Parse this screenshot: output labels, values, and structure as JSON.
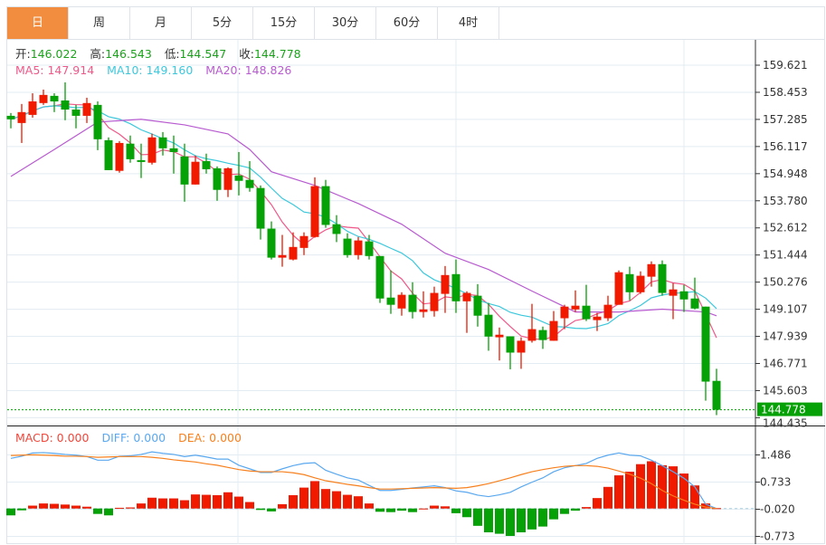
{
  "tabs": [
    {
      "label": "日",
      "active": true
    },
    {
      "label": "周",
      "active": false
    },
    {
      "label": "月",
      "active": false
    },
    {
      "label": "5分",
      "active": false
    },
    {
      "label": "15分",
      "active": false
    },
    {
      "label": "30分",
      "active": false
    },
    {
      "label": "60分",
      "active": false
    },
    {
      "label": "4时",
      "active": false
    }
  ],
  "ohlc_legend": {
    "open_label": "开:",
    "open": "146.022",
    "high_label": "高:",
    "high": "146.543",
    "low_label": "低:",
    "low": "144.547",
    "close_label": "收:",
    "close": "144.778"
  },
  "ma_legend": {
    "ma5": "MA5: 147.914",
    "ma10": "MA10: 149.160",
    "ma20": "MA20: 148.826"
  },
  "macd_legend": {
    "macd": "MACD: 0.000",
    "diff": "DIFF: 0.000",
    "dea": "DEA: 0.000"
  },
  "colors": {
    "up": "#ef1a00",
    "down": "#06a106",
    "ma5": "#f0588a",
    "ma10": "#3cc8dc",
    "ma20": "#b85bd0",
    "diff": "#5aa8ef",
    "dea": "#f7801e",
    "accent": "#f28c3f"
  },
  "chart_data": [
    {
      "type": "candlestick",
      "price_axis_ticks": [
        "159.621",
        "158.453",
        "157.285",
        "156.117",
        "154.948",
        "153.780",
        "152.612",
        "151.444",
        "150.276",
        "149.107",
        "147.939",
        "146.771",
        "145.603",
        "144.435"
      ],
      "current_price": "144.778",
      "candles": [
        [
          157.44,
          157.56,
          156.9,
          157.29
        ],
        [
          157.13,
          157.95,
          156.27,
          157.6
        ],
        [
          157.48,
          158.41,
          157.36,
          158.06
        ],
        [
          157.99,
          158.57,
          157.91,
          158.34
        ],
        [
          158.3,
          158.41,
          157.6,
          158.06
        ],
        [
          158.1,
          158.88,
          157.25,
          157.71
        ],
        [
          157.71,
          157.91,
          156.9,
          157.44
        ],
        [
          157.44,
          158.22,
          157.13,
          157.99
        ],
        [
          157.91,
          158.06,
          155.96,
          156.43
        ],
        [
          156.39,
          156.51,
          155.1,
          155.1
        ],
        [
          155.07,
          156.35,
          154.99,
          156.27
        ],
        [
          156.24,
          156.59,
          155.42,
          155.57
        ],
        [
          155.53,
          156.24,
          154.76,
          155.46
        ],
        [
          155.42,
          156.67,
          155.34,
          156.51
        ],
        [
          156.51,
          156.74,
          155.73,
          156.04
        ],
        [
          156.04,
          156.59,
          154.95,
          155.88
        ],
        [
          155.69,
          156.24,
          153.74,
          154.48
        ],
        [
          154.48,
          155.73,
          154.48,
          155.46
        ],
        [
          155.49,
          155.81,
          154.95,
          155.14
        ],
        [
          155.18,
          155.26,
          153.78,
          154.25
        ],
        [
          154.25,
          155.22,
          153.94,
          155.18
        ],
        [
          154.87,
          155.88,
          154.01,
          154.64
        ],
        [
          154.68,
          155.49,
          154.17,
          154.33
        ],
        [
          154.33,
          154.44,
          152.11,
          152.58
        ],
        [
          152.58,
          152.89,
          151.25,
          151.33
        ],
        [
          151.33,
          152.31,
          150.94,
          151.44
        ],
        [
          151.25,
          152.42,
          151.21,
          151.79
        ],
        [
          151.75,
          152.42,
          151.44,
          152.26
        ],
        [
          152.22,
          154.79,
          152.19,
          154.41
        ],
        [
          154.41,
          154.68,
          152.62,
          152.74
        ],
        [
          152.77,
          153.16,
          152.0,
          152.35
        ],
        [
          152.15,
          152.38,
          151.33,
          151.44
        ],
        [
          151.44,
          152.22,
          151.25,
          152.07
        ],
        [
          152.03,
          152.31,
          151.25,
          151.4
        ],
        [
          151.4,
          151.4,
          149.38,
          149.57
        ],
        [
          149.61,
          150.78,
          148.91,
          149.3
        ],
        [
          149.14,
          149.84,
          148.83,
          149.73
        ],
        [
          149.73,
          150.27,
          148.71,
          148.99
        ],
        [
          148.99,
          149.88,
          148.75,
          149.1
        ],
        [
          149.03,
          150.08,
          148.79,
          149.81
        ],
        [
          149.77,
          150.97,
          148.95,
          150.58
        ],
        [
          150.62,
          151.25,
          148.95,
          149.45
        ],
        [
          149.45,
          149.88,
          148.09,
          149.81
        ],
        [
          149.69,
          150.19,
          148.36,
          148.83
        ],
        [
          148.87,
          149.38,
          147.32,
          147.93
        ],
        [
          147.9,
          148.32,
          146.9,
          148.01
        ],
        [
          147.94,
          147.94,
          146.52,
          147.24
        ],
        [
          147.24,
          147.9,
          146.54,
          147.75
        ],
        [
          147.75,
          149.34,
          147.67,
          148.25
        ],
        [
          148.21,
          148.36,
          147.4,
          147.78
        ],
        [
          147.75,
          149.03,
          147.75,
          148.6
        ],
        [
          148.72,
          149.3,
          148.25,
          149.22
        ],
        [
          149.1,
          149.92,
          148.99,
          149.26
        ],
        [
          149.26,
          150.16,
          148.6,
          148.68
        ],
        [
          148.64,
          148.95,
          148.17,
          148.79
        ],
        [
          148.72,
          149.69,
          148.6,
          149.3
        ],
        [
          149.3,
          150.78,
          149.3,
          150.7
        ],
        [
          150.62,
          150.94,
          149.49,
          149.84
        ],
        [
          149.84,
          150.74,
          149.77,
          150.55
        ],
        [
          150.51,
          151.17,
          150.08,
          151.05
        ],
        [
          151.05,
          151.21,
          149.69,
          149.81
        ],
        [
          149.69,
          150.23,
          148.68,
          149.96
        ],
        [
          149.88,
          150.16,
          148.99,
          149.53
        ],
        [
          149.57,
          150.47,
          149.1,
          149.14
        ],
        [
          149.22,
          149.22,
          145.17,
          145.99
        ],
        [
          146.022,
          146.543,
          144.547,
          144.778
        ]
      ],
      "ma20_anchors": [
        [
          1,
          154.83
        ],
        [
          5,
          155.99
        ],
        [
          9,
          157.17
        ],
        [
          13,
          157.29
        ],
        [
          17,
          157.05
        ],
        [
          21,
          156.66
        ],
        [
          23,
          155.99
        ],
        [
          25,
          155.03
        ],
        [
          29,
          154.44
        ],
        [
          33,
          153.66
        ],
        [
          37,
          152.77
        ],
        [
          41,
          151.52
        ],
        [
          45,
          150.82
        ],
        [
          49,
          149.89
        ],
        [
          53,
          148.99
        ],
        [
          57,
          148.99
        ],
        [
          61,
          149.11
        ],
        [
          65,
          148.99
        ],
        [
          66,
          148.826
        ]
      ]
    },
    {
      "type": "bar+line",
      "name": "MACD",
      "axis_ticks": [
        "1.486",
        "0.733",
        "-0.020",
        "-0.773"
      ],
      "macd": [
        -0.19,
        -0.05,
        0.08,
        0.14,
        0.13,
        0.11,
        0.08,
        0.05,
        -0.15,
        -0.19,
        0.02,
        0.03,
        0.14,
        0.3,
        0.28,
        0.28,
        0.23,
        0.39,
        0.38,
        0.37,
        0.45,
        0.33,
        0.18,
        -0.04,
        -0.08,
        0.12,
        0.37,
        0.58,
        0.76,
        0.54,
        0.48,
        0.38,
        0.34,
        0.14,
        -0.09,
        -0.1,
        -0.06,
        -0.1,
        0.0,
        0.08,
        0.06,
        -0.13,
        -0.24,
        -0.48,
        -0.66,
        -0.7,
        -0.76,
        -0.66,
        -0.58,
        -0.5,
        -0.3,
        -0.15,
        -0.06,
        0.04,
        0.29,
        0.6,
        0.92,
        1.02,
        1.23,
        1.31,
        1.2,
        1.17,
        0.97,
        0.64,
        0.14,
        0.01
      ],
      "diff": [
        1.39,
        1.45,
        1.54,
        1.55,
        1.53,
        1.5,
        1.48,
        1.44,
        1.34,
        1.34,
        1.45,
        1.46,
        1.5,
        1.57,
        1.53,
        1.5,
        1.44,
        1.48,
        1.43,
        1.37,
        1.37,
        1.2,
        1.1,
        1.0,
        1.0,
        1.1,
        1.19,
        1.25,
        1.27,
        1.06,
        0.95,
        0.85,
        0.79,
        0.64,
        0.5,
        0.5,
        0.53,
        0.57,
        0.6,
        0.63,
        0.58,
        0.49,
        0.45,
        0.37,
        0.33,
        0.38,
        0.45,
        0.6,
        0.73,
        0.85,
        1.02,
        1.13,
        1.19,
        1.25,
        1.39,
        1.48,
        1.54,
        1.48,
        1.46,
        1.34,
        1.19,
        1.02,
        0.84,
        0.6,
        0.12,
        0.0
      ],
      "dea": [
        1.47,
        1.48,
        1.49,
        1.48,
        1.47,
        1.45,
        1.45,
        1.44,
        1.42,
        1.43,
        1.44,
        1.44,
        1.44,
        1.42,
        1.39,
        1.35,
        1.32,
        1.29,
        1.24,
        1.2,
        1.14,
        1.08,
        1.04,
        1.02,
        1.02,
        1.02,
        0.99,
        0.94,
        0.85,
        0.77,
        0.72,
        0.67,
        0.63,
        0.58,
        0.54,
        0.54,
        0.55,
        0.56,
        0.57,
        0.58,
        0.57,
        0.56,
        0.58,
        0.63,
        0.69,
        0.77,
        0.85,
        0.94,
        1.02,
        1.08,
        1.13,
        1.17,
        1.19,
        1.19,
        1.17,
        1.12,
        1.04,
        0.95,
        0.84,
        0.69,
        0.5,
        0.35,
        0.23,
        0.12,
        0.04,
        0.0
      ]
    }
  ]
}
